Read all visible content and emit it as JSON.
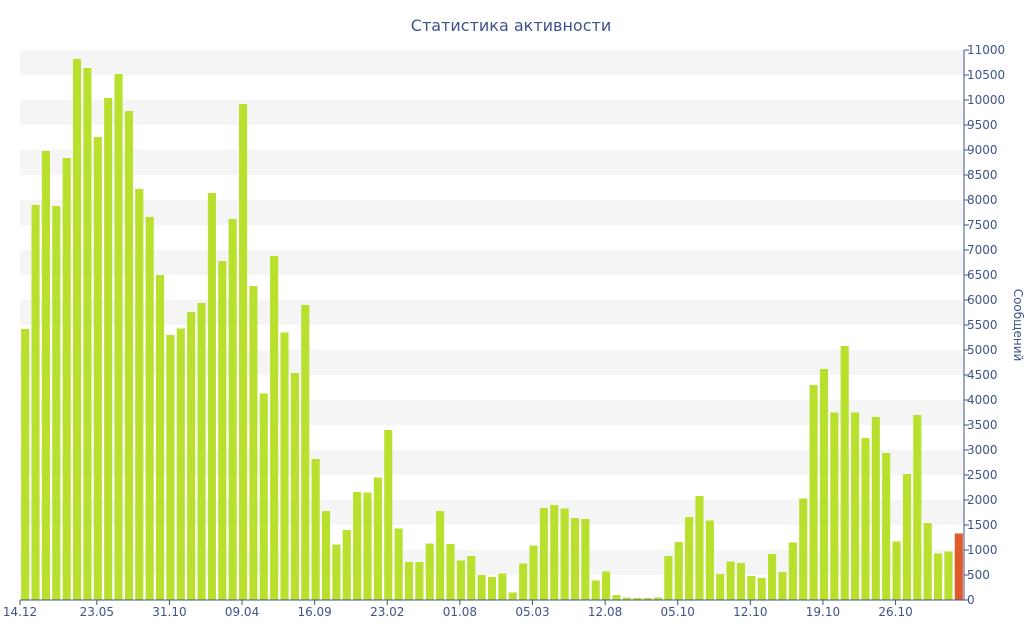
{
  "chart_data": {
    "type": "bar",
    "title": "Статистика активности",
    "xlabel": "",
    "ylabel": "Сообщений",
    "ylim": [
      0,
      11000
    ],
    "y_ticks": [
      0,
      500,
      1000,
      1500,
      2000,
      2500,
      3000,
      3500,
      4000,
      4500,
      5000,
      5500,
      6000,
      6500,
      7000,
      7500,
      8000,
      8500,
      9000,
      9500,
      10000,
      10500,
      11000
    ],
    "y_axis_side": "right",
    "x_tick_labels": [
      "14.12",
      "23.05",
      "31.10",
      "09.04",
      "16.09",
      "23.02",
      "01.08",
      "05.03",
      "12.08",
      "05.10",
      "12.10",
      "19.10",
      "26.10"
    ],
    "x_tick_bar_index": [
      0,
      7,
      14,
      21,
      28,
      35,
      42,
      49,
      56,
      63,
      70,
      77,
      84
    ],
    "grid": "horizontal bands",
    "colors": {
      "bar": "#b8e02c",
      "bar_last": "#e05a2a",
      "band": "#f5f5f5",
      "text": "#3e5489",
      "axis": "#3e5489"
    },
    "values": [
      5420,
      7900,
      8980,
      7880,
      8840,
      10820,
      10640,
      9260,
      10040,
      10520,
      9780,
      8220,
      7660,
      6500,
      5300,
      5430,
      5760,
      5940,
      8140,
      6780,
      7620,
      9920,
      6280,
      4130,
      6880,
      5350,
      4540,
      5900,
      2820,
      1780,
      1110,
      1400,
      2160,
      2150,
      2450,
      3400,
      1430,
      760,
      760,
      1130,
      1780,
      1120,
      790,
      880,
      500,
      460,
      530,
      150,
      730,
      1090,
      1840,
      1900,
      1830,
      1640,
      1620,
      390,
      570,
      100,
      50,
      40,
      40,
      50,
      880,
      1160,
      1660,
      2080,
      1590,
      520,
      770,
      740,
      480,
      440,
      920,
      560,
      1150,
      2030,
      4300,
      4620,
      3750,
      5080,
      3750,
      3240,
      3660,
      2940,
      1170,
      2520,
      3700,
      1540,
      930,
      970,
      1330
    ],
    "highlight_last": true
  }
}
